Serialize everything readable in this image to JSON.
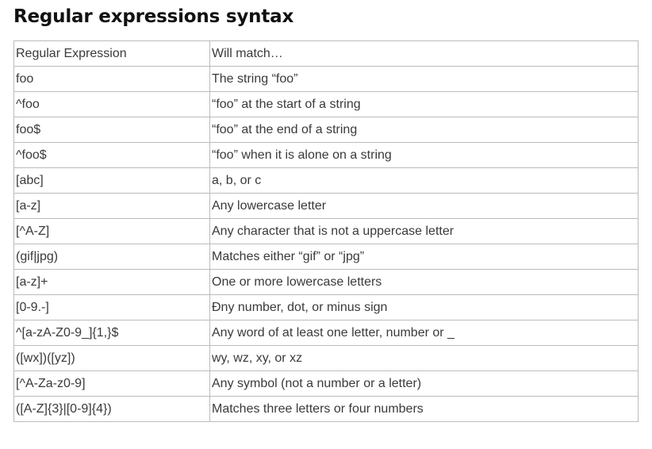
{
  "title": "Regular expressions syntax",
  "table": {
    "header": [
      "Regular Expression",
      "Will match…"
    ],
    "rows": [
      [
        "foo",
        "The string “foo”"
      ],
      [
        "^foo",
        "“foo” at the start of a string"
      ],
      [
        "foo$",
        "“foo” at the end of a string"
      ],
      [
        "^foo$",
        "“foo” when it is alone on a string"
      ],
      [
        "[abc]",
        "a, b, or c"
      ],
      [
        "[a-z]",
        "Any lowercase letter"
      ],
      [
        "[^A-Z]",
        "Any character that is not a uppercase letter"
      ],
      [
        "(gif|jpg)",
        "Matches either “gif” or “jpg”"
      ],
      [
        "[a-z]+",
        "One or more lowercase letters"
      ],
      [
        "[0-9.-]",
        "Đny number, dot, or minus sign"
      ],
      [
        "^[a-zA-Z0-9_]{1,}$",
        "Any word of at least one letter, number or _"
      ],
      [
        "([wx])([yz])",
        "wy, wz, xy, or xz"
      ],
      [
        "[^A-Za-z0-9]",
        "Any symbol (not a number or a letter)"
      ],
      [
        "([A-Z]{3}|[0-9]{4})",
        "Matches three letters or four numbers"
      ]
    ]
  }
}
